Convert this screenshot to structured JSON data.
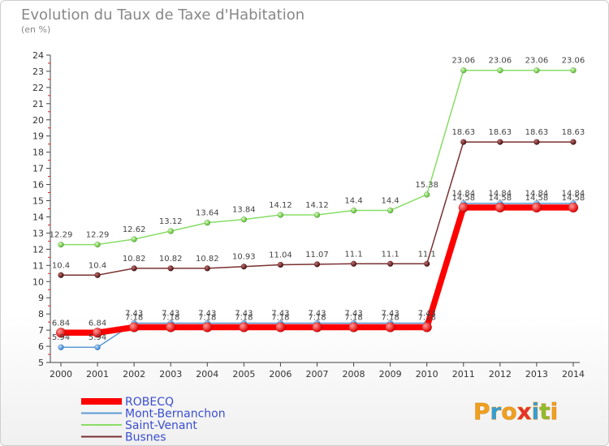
{
  "chart_data": {
    "type": "line",
    "title": "Evolution du Taux de Taxe d'Habitation",
    "subtitle": "(en %)",
    "x": [
      "2000",
      "2001",
      "2002",
      "2003",
      "2004",
      "2005",
      "2006",
      "2007",
      "2008",
      "2009",
      "2010",
      "2011",
      "2012",
      "2013",
      "2014"
    ],
    "ylim": [
      5,
      24
    ],
    "yticks": [
      "5",
      "6",
      "7",
      "8",
      "9",
      "10",
      "11",
      "12",
      "13",
      "14",
      "15",
      "16",
      "17",
      "18",
      "19",
      "20",
      "21",
      "22",
      "23",
      "24"
    ],
    "grid": false,
    "legend_position": "bottom-left",
    "series": [
      {
        "name": "ROBECQ",
        "color": "#ff0000",
        "values": [
          6.84,
          6.84,
          7.18,
          7.18,
          7.18,
          7.18,
          7.18,
          7.18,
          7.18,
          7.18,
          7.18,
          14.58,
          14.58,
          14.58,
          14.58
        ],
        "labels": [
          "6.84",
          "6.84",
          "7.18",
          "7.18",
          "7.18",
          "7.18",
          "7.18",
          "7.18",
          "7.18",
          "7.18",
          "7.18",
          "14.58",
          "14.58",
          "14.58",
          "14.58"
        ]
      },
      {
        "name": "Mont-Bernanchon",
        "color": "#5b9bd5",
        "values": [
          5.94,
          5.94,
          7.43,
          7.43,
          7.43,
          7.43,
          7.43,
          7.43,
          7.43,
          7.43,
          7.43,
          14.84,
          14.84,
          14.84,
          14.84
        ],
        "labels": [
          "5.94",
          "5.94",
          "7.43",
          "7.43",
          "7.43",
          "7.43",
          "7.43",
          "7.43",
          "7.43",
          "7.43",
          "7.43",
          "14.84",
          "14.84",
          "14.84",
          "14.84"
        ]
      },
      {
        "name": "Saint-Venant",
        "color": "#88dd66",
        "values": [
          12.29,
          12.29,
          12.62,
          13.12,
          13.64,
          13.84,
          14.12,
          14.12,
          14.4,
          14.4,
          15.38,
          23.06,
          23.06,
          23.06,
          23.06
        ],
        "labels": [
          "12.29",
          "12.29",
          "12.62",
          "13.12",
          "13.64",
          "13.84",
          "14.12",
          "14.12",
          "14.4",
          "14.4",
          "15.38",
          "23.06",
          "23.06",
          "23.06",
          "23.06"
        ]
      },
      {
        "name": "Busnes",
        "color": "#7a3030",
        "values": [
          10.4,
          10.4,
          10.82,
          10.82,
          10.82,
          10.93,
          11.04,
          11.07,
          11.1,
          11.1,
          11.1,
          18.63,
          18.63,
          18.63,
          18.63
        ],
        "labels": [
          "10.4",
          "10.4",
          "10.82",
          "10.82",
          "10.82",
          "10.93",
          "11.04",
          "11.07",
          "11.1",
          "11.1",
          "11.1",
          "18.63",
          "18.63",
          "18.63",
          "18.63"
        ]
      }
    ]
  },
  "logo": {
    "text": "Proxiti"
  }
}
